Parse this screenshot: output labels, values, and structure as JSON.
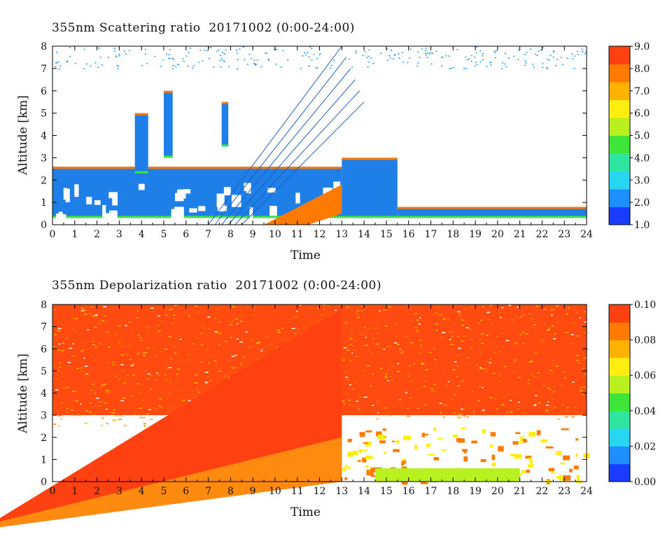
{
  "chart_data": [
    {
      "type": "heatmap",
      "title": "355nm Scattering ratio  20171002 (0:00-24:00)",
      "xlabel": "Time",
      "ylabel": "Altitude [km]",
      "xlim": [
        0,
        24
      ],
      "ylim": [
        0,
        8
      ],
      "x_ticks": [
        "0",
        "1",
        "2",
        "3",
        "4",
        "5",
        "6",
        "7",
        "8",
        "9",
        "10",
        "11",
        "12",
        "13",
        "14",
        "15",
        "16",
        "17",
        "18",
        "19",
        "20",
        "21",
        "22",
        "23",
        "24"
      ],
      "y_ticks": [
        "0",
        "1",
        "2",
        "3",
        "4",
        "5",
        "6",
        "7",
        "8"
      ],
      "colorbar": {
        "range": [
          1.0,
          9.0
        ],
        "ticks": [
          "1.0",
          "2.0",
          "3.0",
          "4.0",
          "5.0",
          "6.0",
          "7.0",
          "8.0",
          "9.0"
        ],
        "colors": [
          "#1a3cff",
          "#1f8fff",
          "#27d6f0",
          "#2ee6a0",
          "#3ee63a",
          "#b8f020",
          "#ffee10",
          "#ffb300",
          "#ff7a00",
          "#ff4010"
        ]
      },
      "cloud_layers": [
        {
          "t_start": 0.0,
          "t_end": 13.0,
          "alt_top": 2.6,
          "alt_bottom": 0.3
        },
        {
          "t_start": 3.7,
          "t_end": 4.3,
          "alt_top": 5.0,
          "alt_bottom": 2.3
        },
        {
          "t_start": 5.0,
          "t_end": 5.4,
          "alt_top": 6.0,
          "alt_bottom": 3.0
        },
        {
          "t_start": 7.6,
          "t_end": 7.9,
          "alt_top": 5.5,
          "alt_bottom": 3.5
        },
        {
          "t_start": 13.0,
          "t_end": 15.5,
          "alt_top": 3.0,
          "alt_bottom": 0.3
        },
        {
          "t_start": 15.5,
          "t_end": 24.0,
          "alt_top": 0.8,
          "alt_bottom": 0.3
        }
      ]
    },
    {
      "type": "heatmap",
      "title": "355nm Depolarization ratio  20171002 (0:00-24:00)",
      "xlabel": "Time",
      "ylabel": "Altitude [km]",
      "xlim": [
        0,
        24
      ],
      "ylim": [
        0,
        8
      ],
      "x_ticks": [
        "0",
        "1",
        "2",
        "3",
        "4",
        "5",
        "6",
        "7",
        "8",
        "9",
        "10",
        "11",
        "12",
        "13",
        "14",
        "15",
        "16",
        "17",
        "18",
        "19",
        "20",
        "21",
        "22",
        "23",
        "24"
      ],
      "y_ticks": [
        "0",
        "1",
        "2",
        "3",
        "4",
        "5",
        "6",
        "7",
        "8"
      ],
      "colorbar": {
        "range": [
          0.0,
          0.1
        ],
        "ticks": [
          "0.00",
          "0.02",
          "0.04",
          "0.06",
          "0.08",
          "0.10"
        ],
        "colors": [
          "#1a3cff",
          "#1f8fff",
          "#27d6f0",
          "#2ee6a0",
          "#3ee63a",
          "#b8f020",
          "#ffee10",
          "#ffb300",
          "#ff7a00",
          "#ff4010"
        ]
      }
    }
  ]
}
